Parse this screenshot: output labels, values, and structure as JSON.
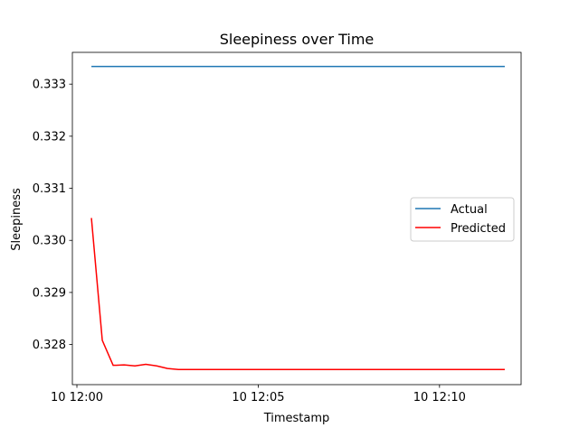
{
  "chart_data": {
    "type": "line",
    "title": "Sleepiness over Time",
    "xlabel": "Timestamp",
    "ylabel": "Sleepiness",
    "x_ticks": [
      {
        "minute": 0,
        "label": "10 12:00"
      },
      {
        "minute": 5,
        "label": "10 12:05"
      },
      {
        "minute": 10,
        "label": "10 12:10"
      }
    ],
    "y_ticks": [
      0.328,
      0.329,
      0.33,
      0.331,
      0.332,
      0.333
    ],
    "xlim": [
      -0.125,
      12.25
    ],
    "ylim": [
      0.32723,
      0.33361
    ],
    "x": [
      0.4,
      0.7,
      1.0,
      1.3,
      1.6,
      1.9,
      2.2,
      2.5,
      2.8,
      3.1,
      3.4,
      3.7,
      4.0,
      4.5,
      5.0,
      6.0,
      7.0,
      8.0,
      9.0,
      10.0,
      11.0,
      11.8
    ],
    "series": [
      {
        "name": "Actual",
        "color": "#1f77b4",
        "values": [
          0.33334,
          0.33334,
          0.33334,
          0.33334,
          0.33334,
          0.33334,
          0.33334,
          0.33334,
          0.33334,
          0.33334,
          0.33334,
          0.33334,
          0.33334,
          0.33334,
          0.33334,
          0.33334,
          0.33334,
          0.33334,
          0.33334,
          0.33334,
          0.33334,
          0.33334
        ]
      },
      {
        "name": "Predicted",
        "color": "#ff0000",
        "values": [
          0.33043,
          0.32808,
          0.3276,
          0.32761,
          0.32759,
          0.32762,
          0.32759,
          0.32754,
          0.32752,
          0.32752,
          0.32752,
          0.32752,
          0.32752,
          0.32752,
          0.32752,
          0.32752,
          0.32752,
          0.32752,
          0.32752,
          0.32752,
          0.32752,
          0.32752
        ]
      }
    ],
    "legend": "center-right",
    "grid": false
  }
}
